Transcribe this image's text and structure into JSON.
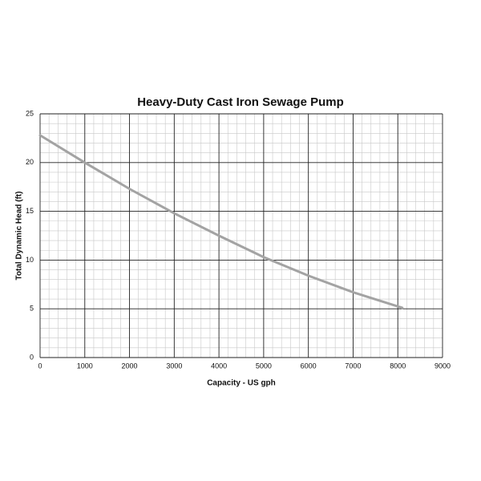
{
  "chart_data": {
    "type": "line",
    "title": "Heavy-Duty Cast Iron Sewage Pump",
    "xlabel": "Capacity - US gph",
    "ylabel": "Total Dynamic Head (ft)",
    "x": [
      0,
      1000,
      2000,
      3000,
      4000,
      5000,
      6000,
      7000,
      8100
    ],
    "series": [
      {
        "color": "#a3a3a3",
        "values": [
          22.8,
          20,
          17.3,
          14.8,
          12.5,
          10.3,
          8.4,
          6.7,
          5.1
        ]
      }
    ],
    "xlim": [
      0,
      9000
    ],
    "xticks": [
      0,
      1000,
      2000,
      3000,
      4000,
      5000,
      6000,
      7000,
      8000,
      9000
    ],
    "ylim": [
      0,
      25
    ],
    "yticks": [
      0,
      5,
      10,
      15,
      20,
      25
    ],
    "grid": true,
    "minor_grid": true
  }
}
